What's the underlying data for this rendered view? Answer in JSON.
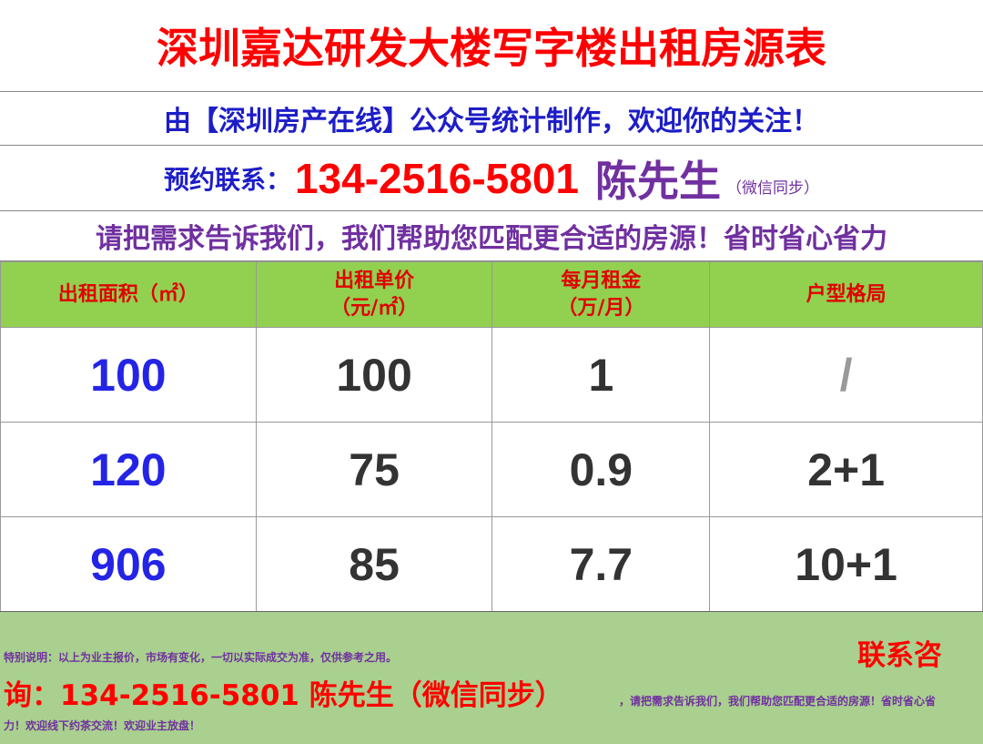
{
  "title": "深圳嘉达研发大楼写字楼出租房源表",
  "subtitle": "由【深圳房产在线】公众号统计制作，欢迎你的关注！",
  "contact": {
    "label": "预约联系：",
    "phone": "134-2516-5801",
    "name": "陈先生",
    "wechat": "（微信同步）"
  },
  "slogan": "请把需求告诉我们，我们帮助您匹配更合适的房源！省时省心省力",
  "table": {
    "headers": [
      [
        "出租面积（㎡）",
        ""
      ],
      [
        "出租单价",
        "（元/㎡）"
      ],
      [
        "每月租金",
        "（万/月）"
      ],
      [
        "户型格局",
        ""
      ]
    ],
    "rows": [
      [
        "100",
        "100",
        "1",
        "/"
      ],
      [
        "120",
        "75",
        "0.9",
        "2+1"
      ],
      [
        "906",
        "85",
        "7.7",
        "10+1"
      ]
    ]
  },
  "footer": {
    "contact_label": "联系咨",
    "note": "特别说明：以上为业主报价，市场有变化，一切以实际成交为准，仅供参考之用。",
    "contact_line": "询：134-2516-5801 陈先生（微信同步）",
    "tail1": "，请把需求告诉我们，我们帮助您匹配更合适的房源！省时省心省",
    "tail2": "力！欢迎线下约茶交流！欢迎业主放盘！"
  }
}
